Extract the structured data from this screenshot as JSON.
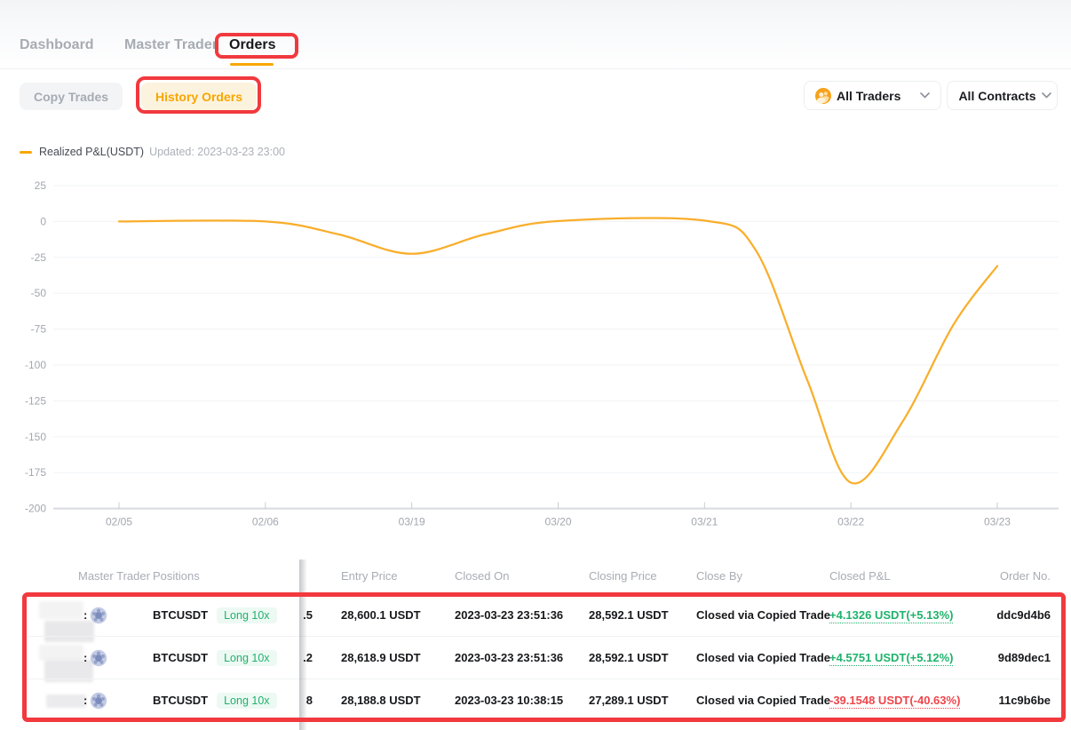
{
  "tabs": {
    "dashboard": "Dashboard",
    "master_trader": "Master Trader",
    "orders": "Orders"
  },
  "subtabs": {
    "copy_trades": "Copy Trades",
    "history_orders": "History Orders"
  },
  "filters": {
    "traders_label": "All Traders",
    "contracts_label": "All Contracts"
  },
  "chart_data": {
    "type": "line",
    "title": "Realized P&L(USDT)",
    "updated": "Updated: 2023-03-23 23:00",
    "x": [
      "02/05",
      "02/06",
      "03/19",
      "03/20",
      "03/21",
      "03/22",
      "03/23"
    ],
    "values": [
      0,
      0,
      -22.5,
      0.5,
      0.5,
      -182,
      -31
    ],
    "yticks": [
      25,
      0,
      -25,
      -50,
      -75,
      -100,
      -125,
      -150,
      -175,
      -200
    ],
    "ylim": [
      -200,
      25
    ],
    "grid": true,
    "legend_position": "top-left",
    "line_color": "#F9AE2B",
    "shape_points": [
      {
        "t": 0.0,
        "v": 0
      },
      {
        "t": 1.0,
        "v": 0
      },
      {
        "t": 1.5,
        "v": -9
      },
      {
        "t": 2.0,
        "v": -22.5
      },
      {
        "t": 2.5,
        "v": -9
      },
      {
        "t": 3.0,
        "v": 0.3
      },
      {
        "t": 4.0,
        "v": 0.6
      },
      {
        "t": 4.35,
        "v": -20
      },
      {
        "t": 4.7,
        "v": -110
      },
      {
        "t": 5.0,
        "v": -182
      },
      {
        "t": 5.35,
        "v": -140
      },
      {
        "t": 5.7,
        "v": -72
      },
      {
        "t": 6.0,
        "v": -31
      }
    ]
  },
  "table": {
    "columns": [
      "Master Trader",
      "Positions",
      "Entry Price",
      "Closed On",
      "Closing Price",
      "Close By",
      "Closed P&L",
      "Order No."
    ],
    "rows": [
      {
        "pair": "BTCUSDT",
        "badge": "Long 10x",
        "qty_fragment": ".5",
        "entry": "28,600.1 USDT",
        "closed_on": "2023-03-23 23:51:36",
        "closing": "28,592.1 USDT",
        "close_by": "Closed via Copied Trade",
        "pnl": "+4.1326 USDT(+5.13%)",
        "pnl_color": "#20B26C",
        "order": "ddc9d4b6"
      },
      {
        "pair": "BTCUSDT",
        "badge": "Long 10x",
        "qty_fragment": ".2",
        "entry": "28,618.9 USDT",
        "closed_on": "2023-03-23 23:51:36",
        "closing": "28,592.1 USDT",
        "close_by": "Closed via Copied Trade",
        "pnl": "+4.5751 USDT(+5.12%)",
        "pnl_color": "#20B26C",
        "order": "9d89dec1"
      },
      {
        "pair": "BTCUSDT",
        "badge": "Long 10x",
        "qty_fragment": "8",
        "entry": "28,188.8 USDT",
        "closed_on": "2023-03-23 10:38:15",
        "closing": "27,289.1 USDT",
        "close_by": "Closed via Copied Trade",
        "pnl": "-39.1548 USDT(-40.63%)",
        "pnl_color": "#EF454A",
        "order": "11c9b6be"
      }
    ]
  },
  "colors": {
    "accent": "#F7A600",
    "green": "#20B26C",
    "red": "#EF454A",
    "annotation": "#F1393E",
    "axis_label": "#A3A7AF",
    "gridline": "#F2F3F6",
    "axis_line": "#D8DADF"
  }
}
